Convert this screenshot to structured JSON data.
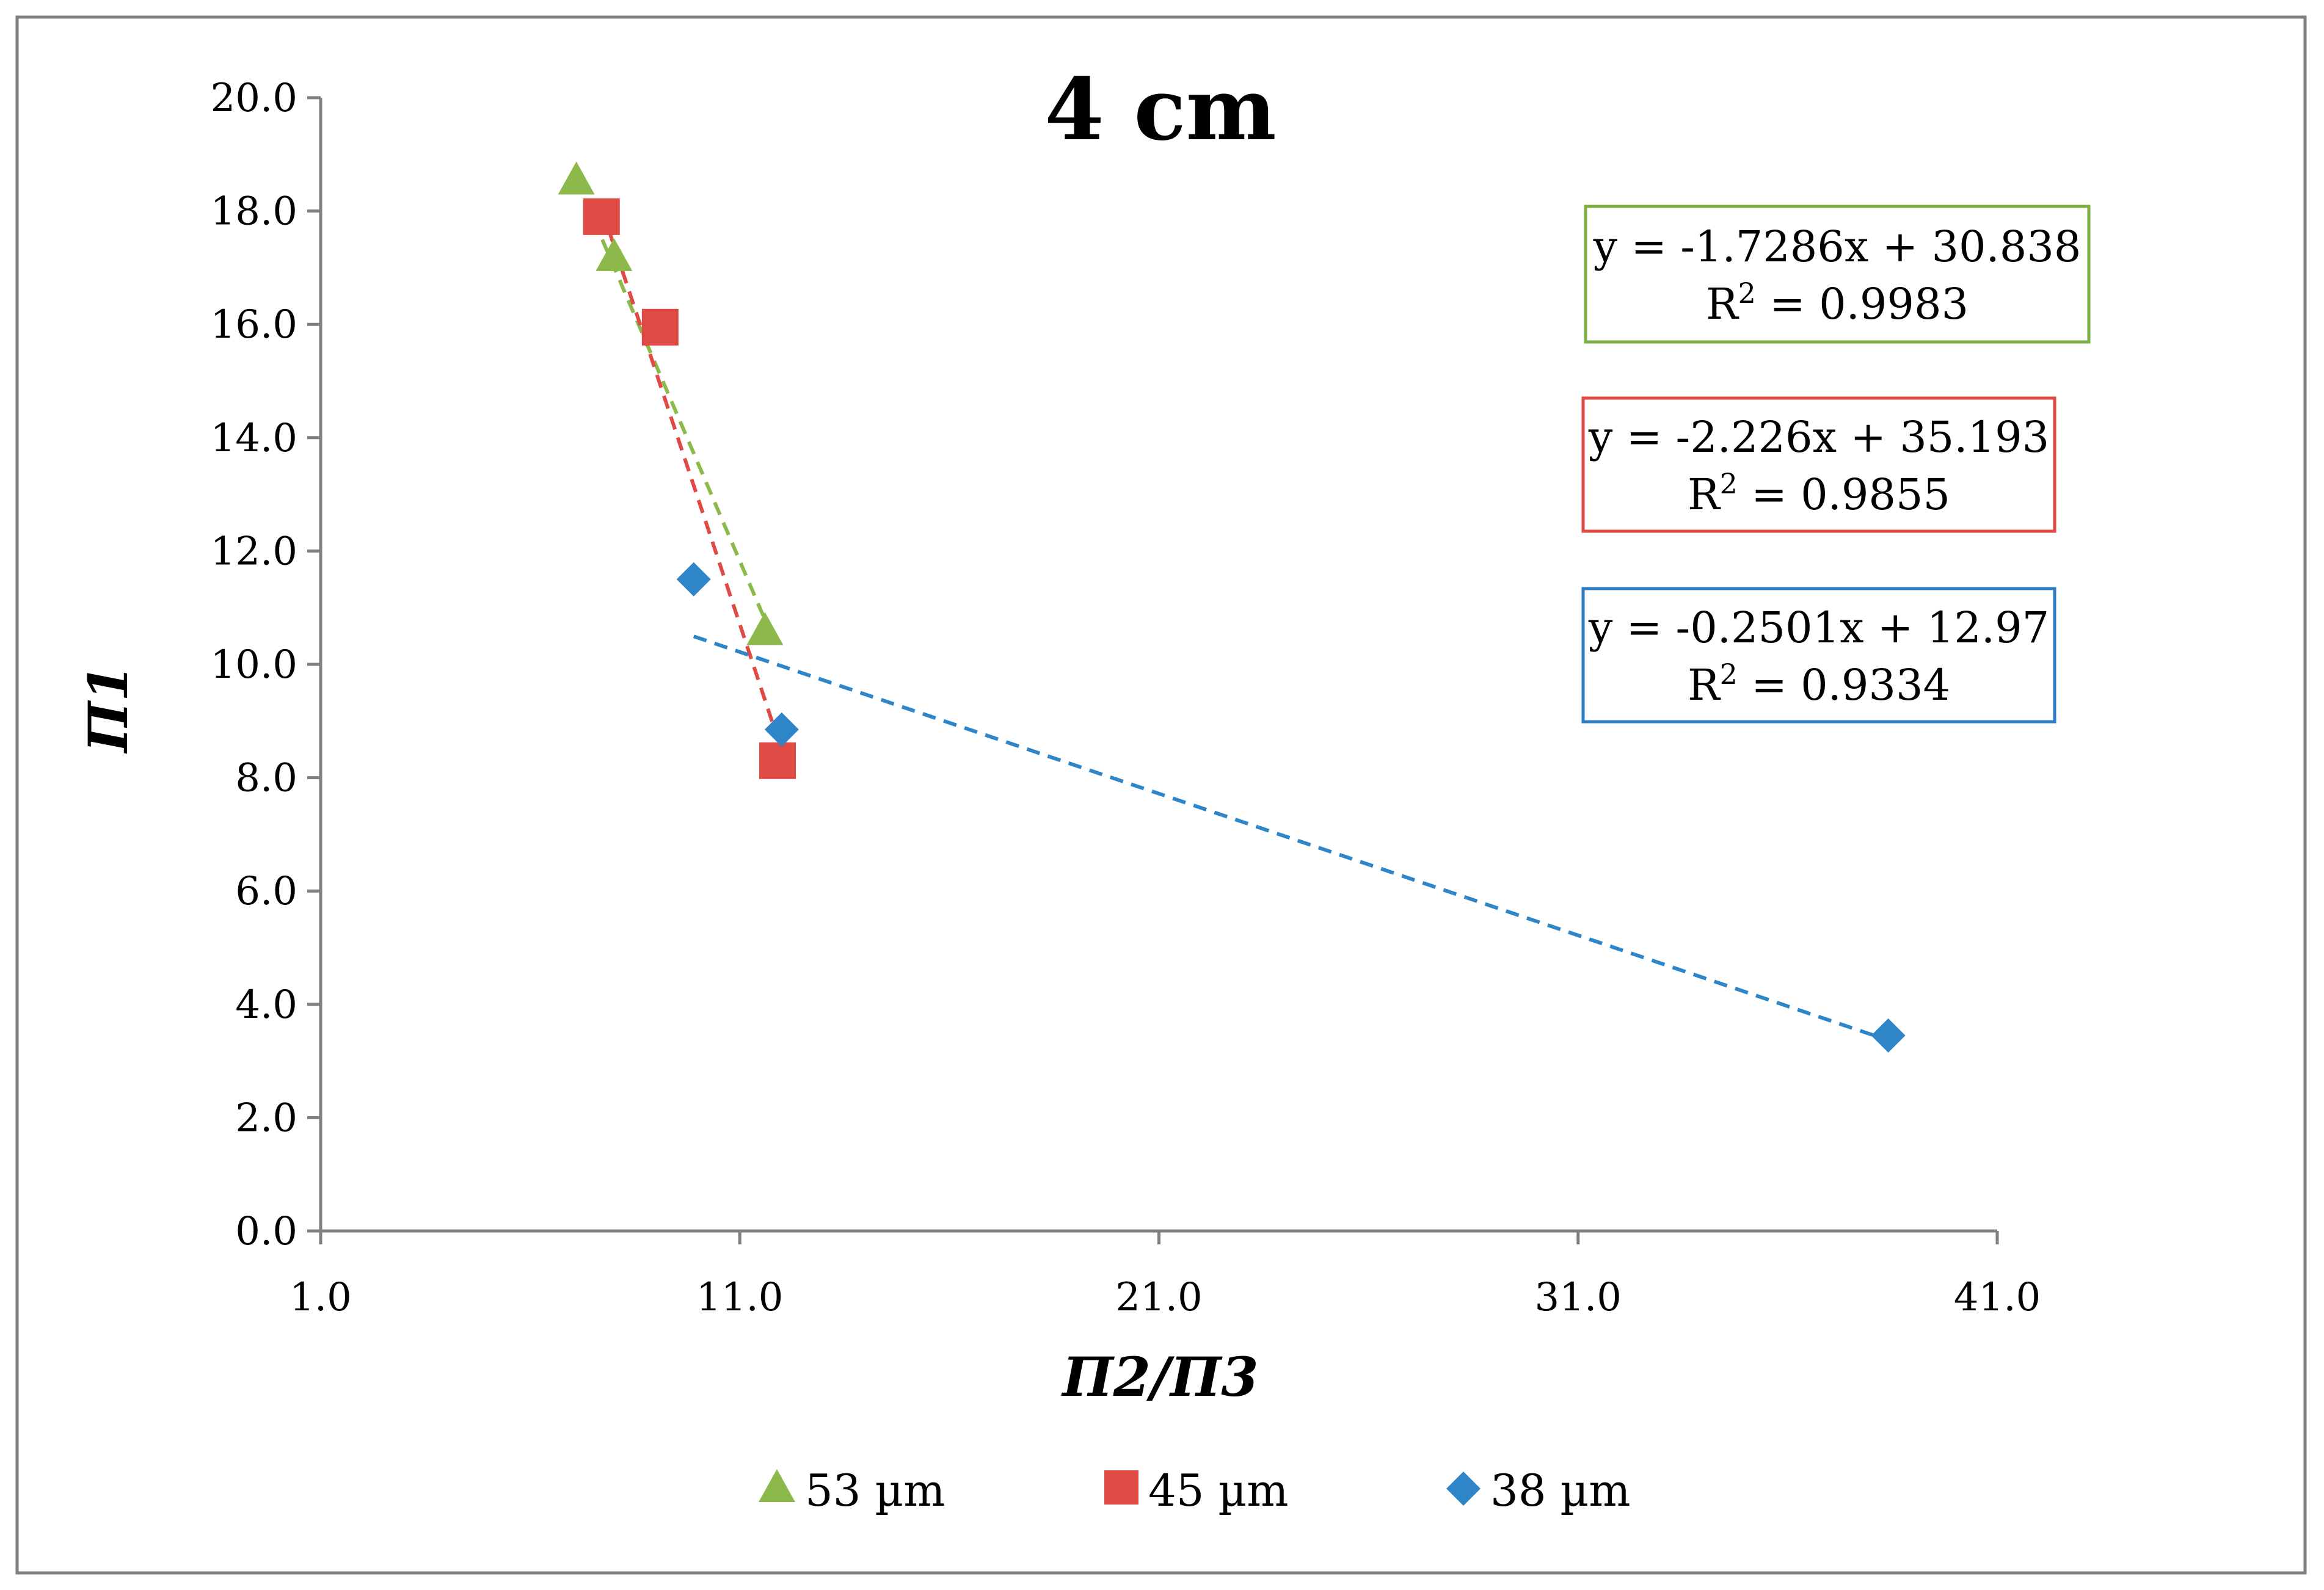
{
  "chart_data": {
    "type": "scatter",
    "title": "4 cm",
    "xlabel": "Π2/Π3",
    "ylabel": "Π1",
    "xlim": [
      1.0,
      41.0
    ],
    "ylim": [
      0.0,
      20.0
    ],
    "x_ticks": [
      "1.0",
      "11.0",
      "21.0",
      "31.0",
      "41.0"
    ],
    "y_ticks": [
      "0.0",
      "2.0",
      "4.0",
      "6.0",
      "8.0",
      "10.0",
      "12.0",
      "14.0",
      "16.0",
      "18.0",
      "20.0"
    ],
    "x_tick_values": [
      1,
      11,
      21,
      31,
      41
    ],
    "y_tick_values": [
      0,
      2,
      4,
      6,
      8,
      10,
      12,
      14,
      16,
      18,
      20
    ],
    "grid": false,
    "legend_position": "bottom",
    "series": [
      {
        "name": "53 µm",
        "marker": "triangle",
        "color": "#8DB94A",
        "points": [
          [
            7.1,
            18.55
          ],
          [
            8.0,
            17.2
          ],
          [
            11.6,
            10.6
          ]
        ],
        "trendline": {
          "slope": -1.7286,
          "intercept": 30.838,
          "x_range": [
            7.1,
            11.6
          ]
        },
        "equation": "y = -1.7286x + 30.838",
        "r2_label": "R",
        "r2_sup": "2",
        "r2_value": " = 0.9983",
        "box_color": "#7BB043"
      },
      {
        "name": "45 µm",
        "marker": "square",
        "color": "#E04A45",
        "points": [
          [
            7.7,
            17.9
          ],
          [
            9.1,
            15.95
          ],
          [
            11.9,
            8.3
          ]
        ],
        "trendline": {
          "slope": -2.226,
          "intercept": 35.193,
          "x_range": [
            7.7,
            11.9
          ]
        },
        "equation": "y = -2.226x + 35.193",
        "r2_label": "R",
        "r2_sup": "2",
        "r2_value": " = 0.9855",
        "box_color": "#E04A45"
      },
      {
        "name": "38 µm",
        "marker": "diamond",
        "color": "#2E86C8",
        "points": [
          [
            9.9,
            11.5
          ],
          [
            12.0,
            8.85
          ],
          [
            38.4,
            3.45
          ]
        ],
        "trendline": {
          "slope": -0.2501,
          "intercept": 12.97,
          "x_range": [
            9.9,
            38.4
          ]
        },
        "equation": "y = -0.2501x + 12.97",
        "r2_label": "R",
        "r2_sup": "2",
        "r2_value": " = 0.9334",
        "box_color": "#2E7CC4"
      }
    ]
  }
}
